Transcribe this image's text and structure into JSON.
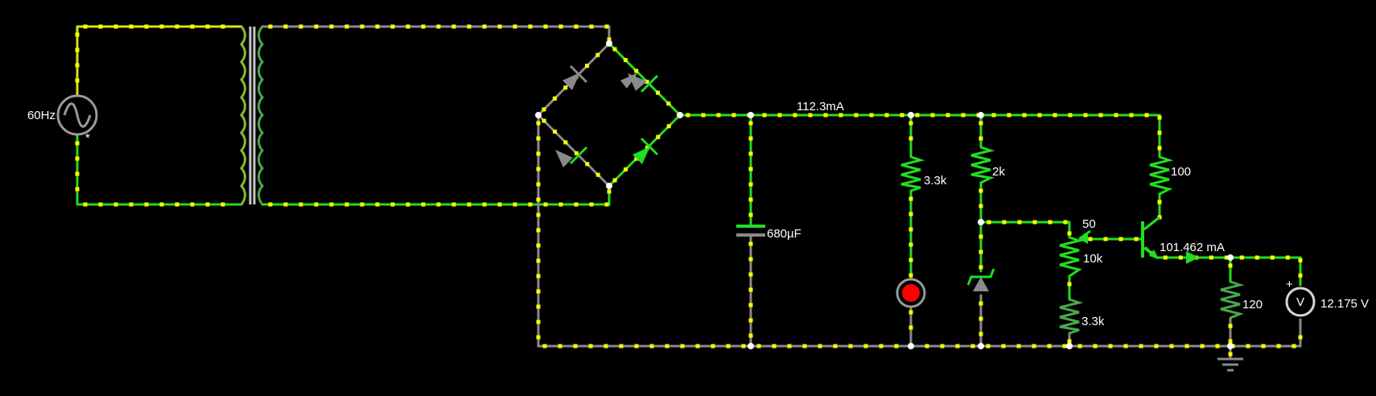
{
  "source": {
    "frequency_label": "60Hz",
    "marker": "*"
  },
  "current_main": "112.3mA",
  "current_output": "101.462 mA",
  "capacitor": {
    "value": "680µF"
  },
  "resistors": {
    "r_led": "3.3k",
    "r_zener": "2k",
    "r_collector": "100",
    "pot_top": "50",
    "pot_value": "10k",
    "r_bottom": "3.3k",
    "r_load": "120"
  },
  "voltmeter": {
    "symbol": "V",
    "plus": "+",
    "reading": "12.175 V"
  },
  "colors": {
    "live": "#22dd22",
    "dead": "#8a8a8a",
    "dot": "#ffff00",
    "led": "#ff0000"
  }
}
